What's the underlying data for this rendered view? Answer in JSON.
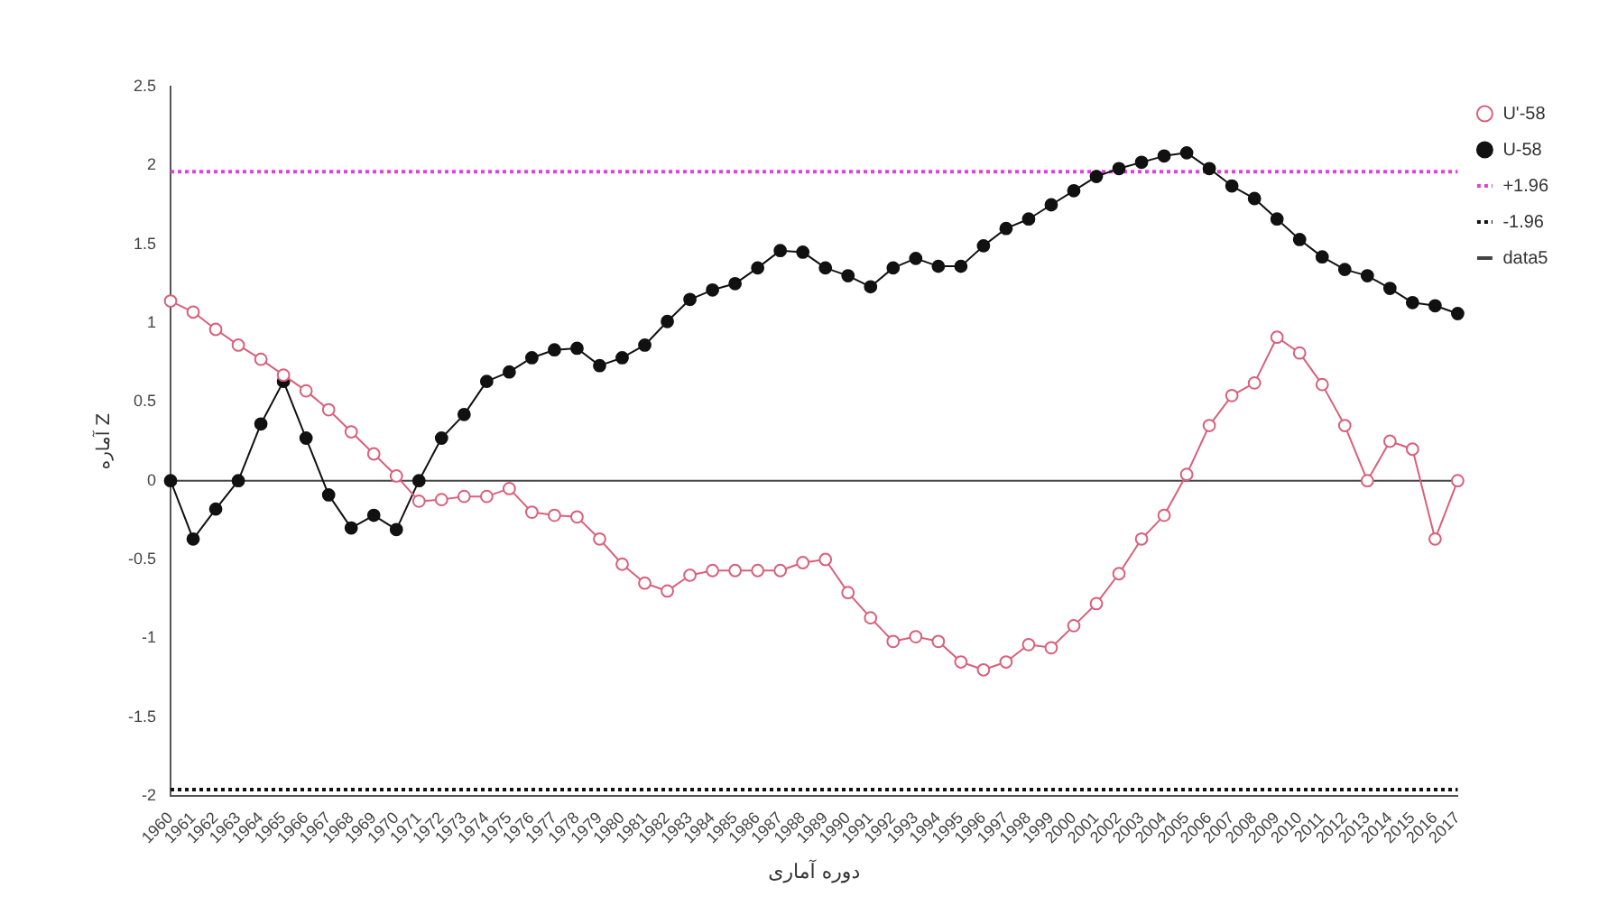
{
  "chart_data": {
    "type": "line",
    "xlabel": "دوره آماری",
    "ylabel": "آماره Z",
    "categories": [
      "1960",
      "1961",
      "1962",
      "1963",
      "1964",
      "1965",
      "1966",
      "1967",
      "1968",
      "1969",
      "1970",
      "1971",
      "1972",
      "1973",
      "1974",
      "1975",
      "1976",
      "1977",
      "1978",
      "1979",
      "1980",
      "1981",
      "1982",
      "1983",
      "1984",
      "1985",
      "1986",
      "1987",
      "1988",
      "1989",
      "1990",
      "1991",
      "1992",
      "1993",
      "1994",
      "1995",
      "1996",
      "1997",
      "1998",
      "1999",
      "2000",
      "2001",
      "2002",
      "2003",
      "2004",
      "2005",
      "2006",
      "2007",
      "2008",
      "2009",
      "2010",
      "2011",
      "2012",
      "2013",
      "2014",
      "2015",
      "2016",
      "2017"
    ],
    "series": [
      {
        "name": "U'-58",
        "color": "#d9607a",
        "values": [
          1.14,
          1.07,
          0.96,
          0.86,
          0.77,
          0.67,
          0.57,
          0.45,
          0.31,
          0.17,
          0.03,
          -0.13,
          -0.12,
          -0.1,
          -0.1,
          -0.05,
          -0.2,
          -0.22,
          -0.23,
          -0.37,
          -0.53,
          -0.65,
          -0.7,
          -0.6,
          -0.57,
          -0.57,
          -0.57,
          -0.57,
          -0.52,
          -0.5,
          -0.71,
          -0.87,
          -1.02,
          -0.99,
          -1.02,
          -1.15,
          -1.2,
          -1.15,
          -1.04,
          -1.06,
          -0.92,
          -0.78,
          -0.59,
          -0.37,
          -0.22,
          0.04,
          0.35,
          0.54,
          0.62,
          0.91,
          0.81,
          0.61,
          0.35,
          0,
          0.25,
          0.2,
          -0.37,
          0
        ]
      },
      {
        "name": "U-58",
        "color": "#111111",
        "values": [
          0,
          -0.37,
          -0.18,
          0,
          0.36,
          0.63,
          0.27,
          -0.09,
          -0.3,
          -0.22,
          -0.31,
          0,
          0.27,
          0.42,
          0.63,
          0.69,
          0.78,
          0.83,
          0.84,
          0.73,
          0.78,
          0.86,
          1.01,
          1.15,
          1.21,
          1.25,
          1.35,
          1.46,
          1.45,
          1.35,
          1.3,
          1.23,
          1.35,
          1.41,
          1.36,
          1.36,
          1.49,
          1.6,
          1.66,
          1.75,
          1.84,
          1.93,
          1.98,
          2.02,
          2.06,
          2.08,
          1.98,
          1.87,
          1.79,
          1.66,
          1.53,
          1.42,
          1.34,
          1.3,
          1.22,
          1.13,
          1.11,
          1.06
        ]
      }
    ],
    "ref_lines": [
      {
        "axis": "y",
        "value": 1.96,
        "label": "+1.96",
        "color": "#e040e0",
        "line_style": "dotted"
      },
      {
        "axis": "y",
        "value": -1.96,
        "label": "-1.96",
        "color": "#111111",
        "line_style": "dotted"
      },
      {
        "axis": "y",
        "value": 0,
        "label": "data5",
        "color": "#444444",
        "line_style": "solid"
      }
    ],
    "ylim": [
      -2,
      2.5
    ],
    "yticks": [
      -2,
      -1.5,
      -1,
      -0.5,
      0,
      0.5,
      1,
      1.5,
      2,
      2.5
    ],
    "grid": false,
    "legend": "top right",
    "marker": "circle",
    "line_style": "solid"
  }
}
